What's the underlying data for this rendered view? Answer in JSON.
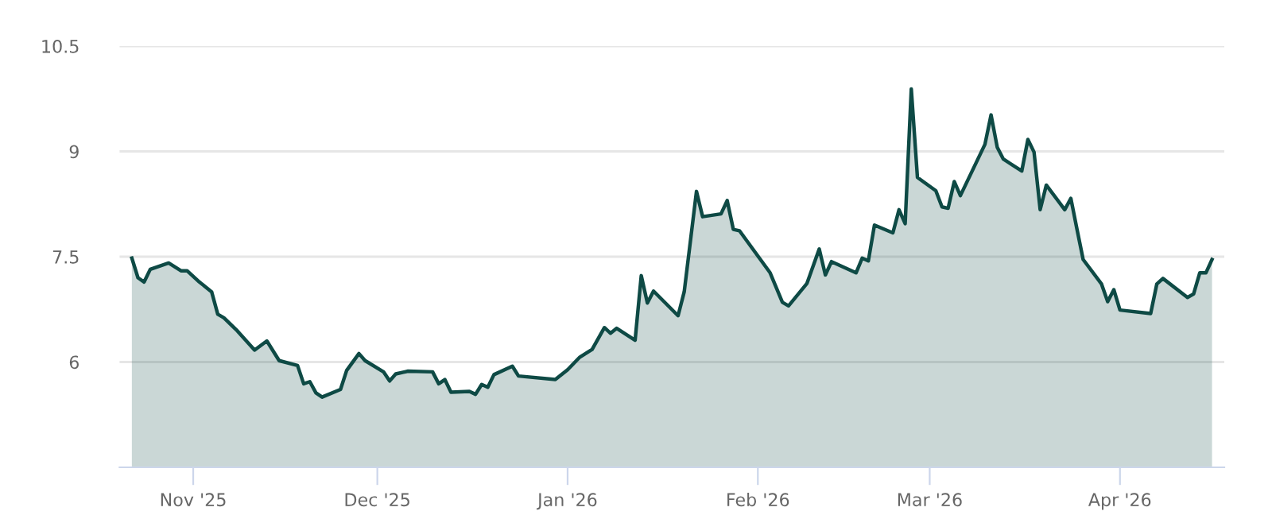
{
  "chart_data": {
    "type": "area",
    "x": [
      "2025-10-22",
      "2025-10-23",
      "2025-10-24",
      "2025-10-25",
      "2025-10-28",
      "2025-10-30",
      "2025-10-31",
      "2025-11-02",
      "2025-11-04",
      "2025-11-05",
      "2025-11-06",
      "2025-11-08",
      "2025-11-11",
      "2025-11-13",
      "2025-11-15",
      "2025-11-18",
      "2025-11-19",
      "2025-11-20",
      "2025-11-21",
      "2025-11-22",
      "2025-11-25",
      "2025-11-26",
      "2025-11-28",
      "2025-11-29",
      "2025-12-02",
      "2025-12-03",
      "2025-12-04",
      "2025-12-06",
      "2025-12-10",
      "2025-12-11",
      "2025-12-12",
      "2025-12-13",
      "2025-12-16",
      "2025-12-17",
      "2025-12-18",
      "2025-12-19",
      "2025-12-20",
      "2025-12-23",
      "2025-12-24",
      "2025-12-30",
      "2026-01-01",
      "2026-01-03",
      "2026-01-05",
      "2026-01-07",
      "2026-01-08",
      "2026-01-09",
      "2026-01-12",
      "2026-01-13",
      "2026-01-14",
      "2026-01-15",
      "2026-01-19",
      "2026-01-20",
      "2026-01-22",
      "2026-01-23",
      "2026-01-26",
      "2026-01-27",
      "2026-01-28",
      "2026-01-29",
      "2026-02-03",
      "2026-02-05",
      "2026-02-06",
      "2026-02-09",
      "2026-02-11",
      "2026-02-12",
      "2026-02-13",
      "2026-02-17",
      "2026-02-18",
      "2026-02-19",
      "2026-02-20",
      "2026-02-23",
      "2026-02-24",
      "2026-02-25",
      "2026-02-26",
      "2026-02-27",
      "2026-03-02",
      "2026-03-03",
      "2026-03-04",
      "2026-03-05",
      "2026-03-06",
      "2026-03-10",
      "2026-03-11",
      "2026-03-12",
      "2026-03-13",
      "2026-03-16",
      "2026-03-17",
      "2026-03-18",
      "2026-03-19",
      "2026-03-20",
      "2026-03-23",
      "2026-03-24",
      "2026-03-25",
      "2026-03-26",
      "2026-03-29",
      "2026-03-30",
      "2026-03-31",
      "2026-04-01",
      "2026-04-06",
      "2026-04-07",
      "2026-04-08",
      "2026-04-12",
      "2026-04-13",
      "2026-04-14",
      "2026-04-15",
      "2026-04-16"
    ],
    "series": [
      {
        "color": "#0e4a45",
        "values": [
          7.48,
          7.2,
          7.14,
          7.32,
          7.41,
          7.3,
          7.3,
          7.14,
          7.0,
          6.68,
          6.63,
          6.46,
          6.17,
          6.3,
          6.02,
          5.95,
          5.69,
          5.72,
          5.56,
          5.5,
          5.61,
          5.88,
          6.12,
          6.02,
          5.86,
          5.73,
          5.83,
          5.87,
          5.86,
          5.69,
          5.75,
          5.57,
          5.58,
          5.54,
          5.68,
          5.64,
          5.82,
          5.94,
          5.8,
          5.75,
          5.89,
          6.07,
          6.18,
          6.49,
          6.41,
          6.48,
          6.31,
          7.23,
          6.84,
          7.01,
          6.66,
          7.0,
          8.43,
          8.07,
          8.11,
          8.3,
          7.89,
          7.87,
          7.27,
          6.85,
          6.8,
          7.12,
          7.61,
          7.24,
          7.43,
          7.27,
          7.48,
          7.44,
          7.95,
          7.84,
          8.17,
          7.97,
          9.89,
          8.63,
          8.44,
          8.21,
          8.19,
          8.57,
          8.37,
          9.1,
          9.52,
          9.06,
          8.89,
          8.72,
          9.17,
          8.99,
          8.17,
          8.52,
          8.17,
          8.33,
          7.89,
          7.46,
          7.11,
          6.86,
          7.03,
          6.74,
          6.69,
          7.11,
          7.19,
          6.92,
          6.97,
          7.27,
          7.27,
          7.46
        ]
      }
    ],
    "xlim": [
      "2025-10-20",
      "2026-04-18"
    ],
    "xticks": [
      {
        "value": "2025-11-01",
        "label": "Nov '25"
      },
      {
        "value": "2025-12-01",
        "label": "Dec '25"
      },
      {
        "value": "2026-01-01",
        "label": "Jan '26"
      },
      {
        "value": "2026-02-01",
        "label": "Feb '26"
      },
      {
        "value": "2026-03-01",
        "label": "Mar '26"
      },
      {
        "value": "2026-04-01",
        "label": "Apr '26"
      }
    ],
    "ylim": [
      4.5,
      10.5
    ],
    "yticks": [
      6,
      7.5,
      9,
      10.5
    ],
    "grid": "y",
    "legend": false
  }
}
